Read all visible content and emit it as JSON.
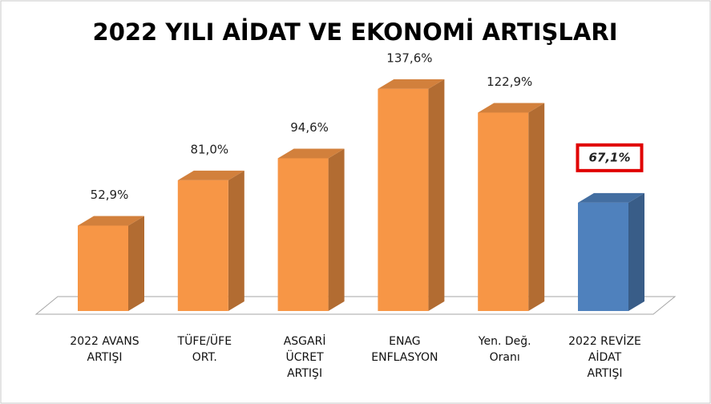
{
  "chart_data": {
    "type": "bar3d",
    "title": "2022 YILI AİDAT VE EKONOMİ ARTIŞLARI",
    "categories": [
      [
        "2022 AVANS",
        "ARTIŞI"
      ],
      [
        "TÜFE/ÜFE",
        "ORT."
      ],
      [
        "ASGARİ",
        "ÜCRET",
        "ARTIŞI"
      ],
      [
        "ENAG",
        "ENFLASYON"
      ],
      [
        "Yen. Değ.",
        "Oranı"
      ],
      [
        "2022 REVİZE",
        "AİDAT",
        "ARTIŞI"
      ]
    ],
    "values": [
      52.9,
      81.0,
      94.6,
      137.6,
      122.9,
      67.1
    ],
    "value_labels": [
      "52,9%",
      "81,0%",
      "94,6%",
      "137,6%",
      "122,9%",
      "67,1%"
    ],
    "colors": [
      "#f79646",
      "#f79646",
      "#f79646",
      "#f79646",
      "#f79646",
      "#4f81bd"
    ],
    "highlight": 5,
    "ylim": [
      0,
      140
    ]
  }
}
